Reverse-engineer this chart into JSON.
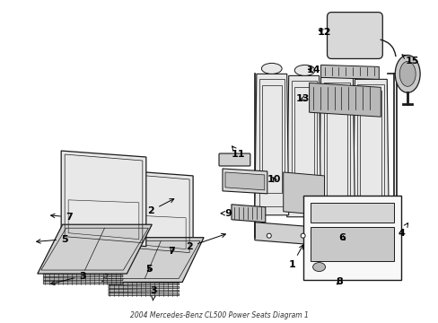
{
  "title": "2004 Mercedes-Benz CL500 Power Seats Diagram 1",
  "bg": "#ffffff",
  "lc": "#1a1a1a",
  "figsize": [
    4.89,
    3.6
  ],
  "dpi": 100,
  "seat_fill": "#e8e8e8",
  "seat_fill2": "#d0d0d0",
  "rail_fill": "#b0b0b0",
  "label_fs": 8,
  "anno_fs": 8
}
